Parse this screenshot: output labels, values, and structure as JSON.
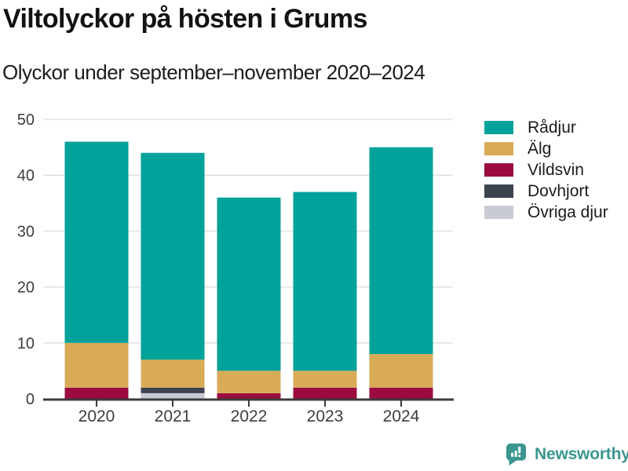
{
  "chart_data": {
    "type": "bar",
    "stacked": true,
    "title": "Viltolyckor på hösten i Grums",
    "subtitle": "Olyckor under september–november 2020–2024",
    "categories": [
      "2020",
      "2021",
      "2022",
      "2023",
      "2024"
    ],
    "series": [
      {
        "name": "Rådjur",
        "color": "#00a29a",
        "values": [
          36,
          37,
          31,
          32,
          37
        ]
      },
      {
        "name": "Älg",
        "color": "#d9ab57",
        "values": [
          8,
          5,
          4,
          3,
          6
        ]
      },
      {
        "name": "Vildsvin",
        "color": "#9b0b40",
        "values": [
          2,
          0,
          1,
          2,
          2
        ]
      },
      {
        "name": "Dovhjort",
        "color": "#3d4250",
        "values": [
          0,
          1,
          0,
          0,
          0
        ]
      },
      {
        "name": "Övriga djur",
        "color": "#c8cbd4",
        "values": [
          0,
          1,
          0,
          0,
          0
        ]
      }
    ],
    "stack_order_bottom_to_top": [
      "Övriga djur",
      "Dovhjort",
      "Vildsvin",
      "Älg",
      "Rådjur"
    ],
    "totals": [
      46,
      44,
      36,
      37,
      45
    ],
    "xlabel": "",
    "ylabel": "",
    "ylim": [
      0,
      50
    ],
    "yticks": [
      0,
      10,
      20,
      30,
      40,
      50
    ],
    "grid": true,
    "legend_position": "right"
  },
  "footer": {
    "brand": "Newsworthy",
    "brand_color": "#3a968f"
  },
  "style_colors": {
    "axis": "#3b3b3b",
    "tick_label": "#3d3d3d",
    "gridline": "#e2e2e2"
  }
}
